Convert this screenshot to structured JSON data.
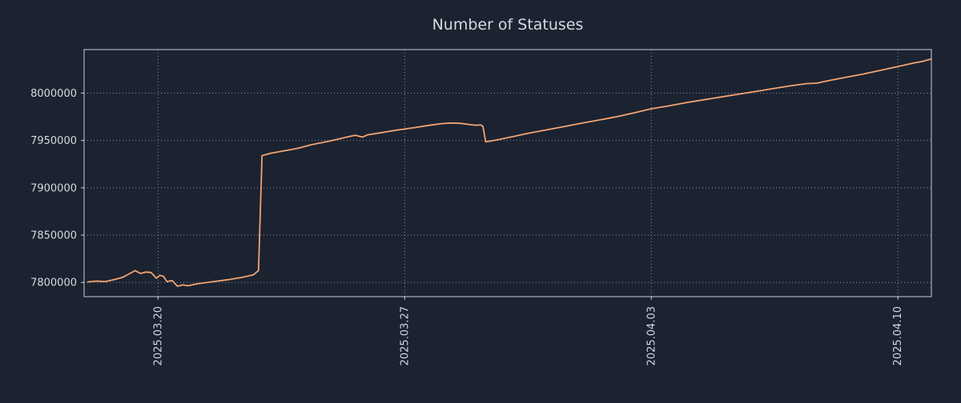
{
  "chart_data": {
    "type": "line",
    "title": "Number of Statuses",
    "x_axis": {
      "min": -0.1,
      "max": 23.95,
      "unit": "days since 2025.03.18",
      "ticks": [
        {
          "pos": 2,
          "label": "2025.03.20"
        },
        {
          "pos": 9,
          "label": "2025.03.27"
        },
        {
          "pos": 16,
          "label": "2025.04.03"
        },
        {
          "pos": 23,
          "label": "2025.04.10"
        }
      ]
    },
    "y_axis": {
      "min": 7785000,
      "max": 8046000,
      "ticks": [
        7800000,
        7850000,
        7900000,
        7950000,
        8000000
      ]
    },
    "grid": "dotted",
    "legend": "none",
    "series": [
      {
        "name": "Number of Statuses",
        "color": "#f2a472",
        "points": [
          [
            0.0,
            7800500
          ],
          [
            0.25,
            7801500
          ],
          [
            0.5,
            7801000
          ],
          [
            0.75,
            7803000
          ],
          [
            1.0,
            7805500
          ],
          [
            1.2,
            7809500
          ],
          [
            1.35,
            7812500
          ],
          [
            1.5,
            7809500
          ],
          [
            1.65,
            7811000
          ],
          [
            1.8,
            7810500
          ],
          [
            1.95,
            7804500
          ],
          [
            2.05,
            7807500
          ],
          [
            2.15,
            7806500
          ],
          [
            2.25,
            7801000
          ],
          [
            2.4,
            7802000
          ],
          [
            2.55,
            7796000
          ],
          [
            2.7,
            7797500
          ],
          [
            2.85,
            7796500
          ],
          [
            3.1,
            7798500
          ],
          [
            3.5,
            7800500
          ],
          [
            4.0,
            7803000
          ],
          [
            4.4,
            7805500
          ],
          [
            4.7,
            7808000
          ],
          [
            4.85,
            7812500
          ],
          [
            4.95,
            7934000
          ],
          [
            5.2,
            7936500
          ],
          [
            5.5,
            7938500
          ],
          [
            5.8,
            7940500
          ],
          [
            6.0,
            7942000
          ],
          [
            6.35,
            7945500
          ],
          [
            6.7,
            7948000
          ],
          [
            7.0,
            7950500
          ],
          [
            7.35,
            7953500
          ],
          [
            7.6,
            7955500
          ],
          [
            7.8,
            7953500
          ],
          [
            7.95,
            7956000
          ],
          [
            8.3,
            7958000
          ],
          [
            8.7,
            7960500
          ],
          [
            9.0,
            7962000
          ],
          [
            9.35,
            7964000
          ],
          [
            9.7,
            7966000
          ],
          [
            10.0,
            7967500
          ],
          [
            10.3,
            7968500
          ],
          [
            10.6,
            7968000
          ],
          [
            10.9,
            7966500
          ],
          [
            11.05,
            7966000
          ],
          [
            11.15,
            7966500
          ],
          [
            11.22,
            7965000
          ],
          [
            11.3,
            7948500
          ],
          [
            11.6,
            7950500
          ],
          [
            12.0,
            7953500
          ],
          [
            12.5,
            7957500
          ],
          [
            13.0,
            7961000
          ],
          [
            13.5,
            7964500
          ],
          [
            14.0,
            7968000
          ],
          [
            14.5,
            7971500
          ],
          [
            15.0,
            7975000
          ],
          [
            15.5,
            7979000
          ],
          [
            16.0,
            7983500
          ],
          [
            16.5,
            7986500
          ],
          [
            17.0,
            7990000
          ],
          [
            17.5,
            7993000
          ],
          [
            18.0,
            7996000
          ],
          [
            18.5,
            7999000
          ],
          [
            19.0,
            8002000
          ],
          [
            19.5,
            8005000
          ],
          [
            20.0,
            8008000
          ],
          [
            20.4,
            8010000
          ],
          [
            20.7,
            8010500
          ],
          [
            21.0,
            8013000
          ],
          [
            21.5,
            8016500
          ],
          [
            22.0,
            8020000
          ],
          [
            22.5,
            8024000
          ],
          [
            23.0,
            8028000
          ],
          [
            23.4,
            8031500
          ],
          [
            23.7,
            8033500
          ],
          [
            23.95,
            8036000
          ]
        ]
      }
    ]
  },
  "theme": {
    "background": "#1b2330",
    "text_color": "#d4dae2",
    "grid_color": "#8b93a0",
    "border_color": "#c9ced6"
  }
}
